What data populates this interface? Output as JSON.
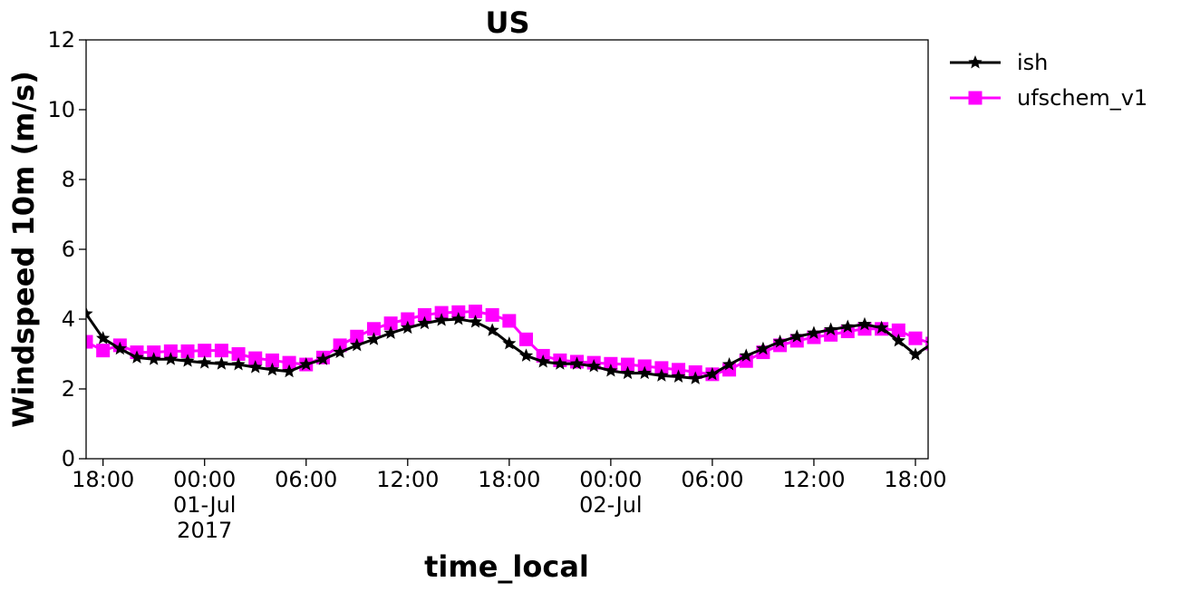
{
  "chart_data": {
    "type": "line",
    "title": "US",
    "xlabel": "time_local",
    "ylabel": "Windspeed 10m (m/s)",
    "ylim": [
      0,
      12
    ],
    "yticks": [
      0,
      2,
      4,
      6,
      8,
      10,
      12
    ],
    "xlim": [
      "2017-06-30 17:00",
      "2017-07-02 18:45"
    ],
    "xticks": [
      {
        "t": "2017-06-30 18:00",
        "lines": [
          "18:00"
        ]
      },
      {
        "t": "2017-07-01 00:00",
        "lines": [
          "00:00",
          "01-Jul",
          "2017"
        ]
      },
      {
        "t": "2017-07-01 06:00",
        "lines": [
          "06:00"
        ]
      },
      {
        "t": "2017-07-01 12:00",
        "lines": [
          "12:00"
        ]
      },
      {
        "t": "2017-07-01 18:00",
        "lines": [
          "18:00"
        ]
      },
      {
        "t": "2017-07-02 00:00",
        "lines": [
          "00:00",
          "02-Jul"
        ]
      },
      {
        "t": "2017-07-02 06:00",
        "lines": [
          "06:00"
        ]
      },
      {
        "t": "2017-07-02 12:00",
        "lines": [
          "12:00"
        ]
      },
      {
        "t": "2017-07-02 18:00",
        "lines": [
          "18:00"
        ]
      }
    ],
    "grid": false,
    "legend": "outside-top-right",
    "x": [
      "2017-06-30 17:00",
      "2017-06-30 18:00",
      "2017-06-30 19:00",
      "2017-06-30 20:00",
      "2017-06-30 21:00",
      "2017-06-30 22:00",
      "2017-06-30 23:00",
      "2017-07-01 00:00",
      "2017-07-01 01:00",
      "2017-07-01 02:00",
      "2017-07-01 03:00",
      "2017-07-01 04:00",
      "2017-07-01 05:00",
      "2017-07-01 06:00",
      "2017-07-01 07:00",
      "2017-07-01 08:00",
      "2017-07-01 09:00",
      "2017-07-01 10:00",
      "2017-07-01 11:00",
      "2017-07-01 12:00",
      "2017-07-01 13:00",
      "2017-07-01 14:00",
      "2017-07-01 15:00",
      "2017-07-01 16:00",
      "2017-07-01 17:00",
      "2017-07-01 18:00",
      "2017-07-01 19:00",
      "2017-07-01 20:00",
      "2017-07-01 21:00",
      "2017-07-01 22:00",
      "2017-07-01 23:00",
      "2017-07-02 00:00",
      "2017-07-02 01:00",
      "2017-07-02 02:00",
      "2017-07-02 03:00",
      "2017-07-02 04:00",
      "2017-07-02 05:00",
      "2017-07-02 06:00",
      "2017-07-02 07:00",
      "2017-07-02 08:00",
      "2017-07-02 09:00",
      "2017-07-02 10:00",
      "2017-07-02 11:00",
      "2017-07-02 12:00",
      "2017-07-02 13:00",
      "2017-07-02 14:00",
      "2017-07-02 15:00",
      "2017-07-02 16:00",
      "2017-07-02 17:00",
      "2017-07-02 18:00",
      "2017-07-02 19:00"
    ],
    "series": [
      {
        "name": "ish",
        "color": "#000000",
        "marker": "star",
        "values": [
          4.15,
          3.45,
          3.15,
          2.9,
          2.85,
          2.85,
          2.8,
          2.75,
          2.72,
          2.7,
          2.62,
          2.55,
          2.5,
          2.7,
          2.85,
          3.05,
          3.25,
          3.42,
          3.6,
          3.75,
          3.88,
          3.97,
          4.0,
          3.92,
          3.68,
          3.3,
          2.95,
          2.78,
          2.72,
          2.72,
          2.65,
          2.52,
          2.45,
          2.45,
          2.38,
          2.35,
          2.3,
          2.42,
          2.7,
          2.95,
          3.15,
          3.35,
          3.5,
          3.6,
          3.7,
          3.78,
          3.85,
          3.75,
          3.38,
          2.98,
          3.3
        ]
      },
      {
        "name": "ufschem_v1",
        "color": "#ff00ff",
        "marker": "square",
        "values": [
          3.35,
          3.1,
          3.25,
          3.05,
          3.05,
          3.08,
          3.08,
          3.1,
          3.1,
          3.0,
          2.88,
          2.82,
          2.75,
          2.7,
          2.9,
          3.25,
          3.5,
          3.72,
          3.88,
          4.0,
          4.12,
          4.18,
          4.2,
          4.22,
          4.12,
          3.95,
          3.42,
          2.95,
          2.82,
          2.78,
          2.75,
          2.72,
          2.7,
          2.65,
          2.6,
          2.55,
          2.48,
          2.42,
          2.55,
          2.8,
          3.05,
          3.25,
          3.38,
          3.48,
          3.55,
          3.65,
          3.72,
          3.72,
          3.68,
          3.45,
          3.3
        ]
      }
    ]
  }
}
